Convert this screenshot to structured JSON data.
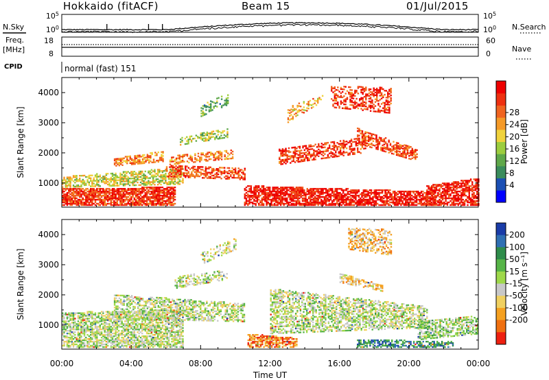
{
  "header": {
    "title": "Hokkaido (fitACF)",
    "beam": "Beam 15",
    "date": "01/Jul/2015"
  },
  "params_panel": {
    "nsky_label": "N.Sky",
    "nsky_ticks": [
      "10^5",
      "10^0"
    ],
    "nsearch_label": "N.Search",
    "nsearch_ticks": [
      "10^5",
      "10^0"
    ],
    "freq_label": "Freq.",
    "freq_unit": "[MHz]",
    "freq_ticks": [
      "18",
      "8"
    ],
    "nave_label": "Nave",
    "nave_ticks": [
      "60",
      "0"
    ],
    "cpid_label": "CPID",
    "cpid_text": "normal (fast) 151"
  },
  "x_axis": {
    "label": "Time UT",
    "ticks": [
      "00:00",
      "04:00",
      "08:00",
      "12:00",
      "16:00",
      "20:00",
      "00:00"
    ],
    "range_hours": [
      0,
      24
    ]
  },
  "chart_data": [
    {
      "type": "heatmap",
      "name": "power",
      "ylabel": "Slant Range [km]",
      "yticks": [
        1000,
        2000,
        3000,
        4000
      ],
      "ylim": [
        200,
        4500
      ],
      "xlim": [
        0,
        24
      ],
      "colorbar": {
        "label": "Power [dB]",
        "ticks": [
          4,
          8,
          12,
          16,
          20,
          24,
          28
        ],
        "colors": [
          "#0000ff",
          "#1b4fb4",
          "#3a8c5c",
          "#5fa84a",
          "#9ccd3e",
          "#f0d23c",
          "#f59a28",
          "#f06420",
          "#ee3010",
          "#ee0000"
        ]
      },
      "bands": [
        {
          "t": [
            0.0,
            6.5
          ],
          "r0": [
            250,
            250
          ],
          "r1": [
            800,
            850
          ],
          "level": 0.85,
          "density": 0.8
        },
        {
          "t": [
            0.0,
            7.0
          ],
          "r0": [
            850,
            950
          ],
          "r1": [
            1200,
            1500
          ],
          "level": 0.5,
          "density": 0.6
        },
        {
          "t": [
            3.0,
            5.8
          ],
          "r0": [
            1550,
            1700
          ],
          "r1": [
            1800,
            2050
          ],
          "level": 0.7,
          "density": 0.6
        },
        {
          "t": [
            6.0,
            10.5
          ],
          "r0": [
            1200,
            1100
          ],
          "r1": [
            1600,
            1500
          ],
          "level": 0.8,
          "density": 0.55
        },
        {
          "t": [
            6.2,
            9.8
          ],
          "r0": [
            1600,
            1800
          ],
          "r1": [
            1900,
            2100
          ],
          "level": 0.7,
          "density": 0.5
        },
        {
          "t": [
            6.8,
            9.5
          ],
          "r0": [
            2250,
            2500
          ],
          "r1": [
            2500,
            2800
          ],
          "level": 0.45,
          "density": 0.45
        },
        {
          "t": [
            8.0,
            9.6
          ],
          "r0": [
            3200,
            3600
          ],
          "r1": [
            3600,
            3950
          ],
          "level": 0.35,
          "density": 0.35
        },
        {
          "t": [
            10.5,
            21.5
          ],
          "r0": [
            250,
            250
          ],
          "r1": [
            900,
            700
          ],
          "level": 0.92,
          "density": 0.75
        },
        {
          "t": [
            12.5,
            17.5
          ],
          "r0": [
            1600,
            2000
          ],
          "r1": [
            2100,
            2500
          ],
          "level": 0.85,
          "density": 0.55
        },
        {
          "t": [
            17.0,
            20.5
          ],
          "r0": [
            2300,
            1700
          ],
          "r1": [
            2800,
            2100
          ],
          "level": 0.8,
          "density": 0.55
        },
        {
          "t": [
            15.5,
            19.0
          ],
          "r0": [
            3500,
            3300
          ],
          "r1": [
            4200,
            4150
          ],
          "level": 0.85,
          "density": 0.45
        },
        {
          "t": [
            13.0,
            15.0
          ],
          "r0": [
            3000,
            3700
          ],
          "r1": [
            3500,
            3900
          ],
          "level": 0.65,
          "density": 0.35
        },
        {
          "t": [
            21.0,
            24.0
          ],
          "r0": [
            250,
            250
          ],
          "r1": [
            900,
            1150
          ],
          "level": 0.9,
          "density": 0.7
        }
      ]
    },
    {
      "type": "heatmap",
      "name": "velocity",
      "ylabel": "Slant Range [km]",
      "yticks": [
        1000,
        2000,
        3000,
        4000
      ],
      "ylim": [
        200,
        4500
      ],
      "xlim": [
        0,
        24
      ],
      "colorbar": {
        "label": "Velocity [m s⁻¹]",
        "ticks": [
          200,
          100,
          50,
          15,
          -15,
          -50,
          -100,
          -200
        ],
        "colors": [
          "#1a3ca8",
          "#2f6fb3",
          "#2e8c4a",
          "#56b447",
          "#9ed84a",
          "#c8c8c8",
          "#f0d060",
          "#f5a020",
          "#f07010",
          "#ee2010"
        ]
      },
      "bands": [
        {
          "t": [
            0.0,
            7.0
          ],
          "r0": [
            250,
            250
          ],
          "r1": [
            1400,
            1500
          ],
          "level": 0.5,
          "density": 0.65
        },
        {
          "t": [
            3.0,
            10.5
          ],
          "r0": [
            1200,
            1100
          ],
          "r1": [
            2000,
            1700
          ],
          "level": 0.5,
          "density": 0.55
        },
        {
          "t": [
            6.5,
            9.5
          ],
          "r0": [
            2200,
            2500
          ],
          "r1": [
            2600,
            2800
          ],
          "level": 0.5,
          "density": 0.45
        },
        {
          "t": [
            8.0,
            10.0
          ],
          "r0": [
            3000,
            3500
          ],
          "r1": [
            3400,
            3900
          ],
          "level": 0.45,
          "density": 0.35
        },
        {
          "t": [
            10.7,
            13.5
          ],
          "r0": [
            250,
            250
          ],
          "r1": [
            700,
            550
          ],
          "level": 0.2,
          "density": 0.7
        },
        {
          "t": [
            12.0,
            21.0
          ],
          "r0": [
            700,
            900
          ],
          "r1": [
            2200,
            1600
          ],
          "level": 0.5,
          "density": 0.55
        },
        {
          "t": [
            16.0,
            18.5
          ],
          "r0": [
            2400,
            2100
          ],
          "r1": [
            2700,
            2300
          ],
          "level": 0.35,
          "density": 0.5
        },
        {
          "t": [
            16.5,
            19.0
          ],
          "r0": [
            3500,
            3300
          ],
          "r1": [
            4200,
            4150
          ],
          "level": 0.3,
          "density": 0.5
        },
        {
          "t": [
            17.0,
            22.5
          ],
          "r0": [
            250,
            250
          ],
          "r1": [
            500,
            450
          ],
          "level": 0.78,
          "density": 0.6
        },
        {
          "t": [
            20.5,
            24.0
          ],
          "r0": [
            500,
            700
          ],
          "r1": [
            1100,
            1300
          ],
          "level": 0.55,
          "density": 0.6
        }
      ]
    }
  ]
}
